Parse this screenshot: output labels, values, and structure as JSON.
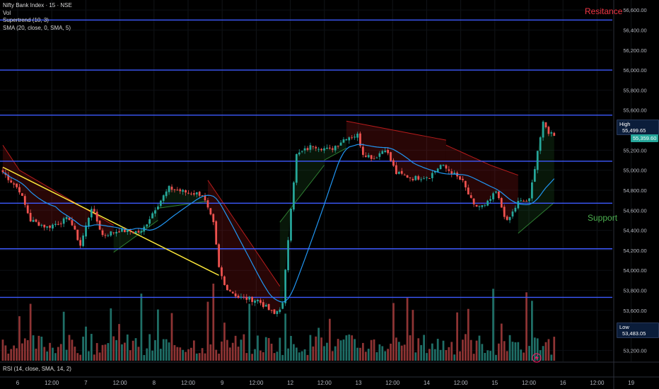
{
  "legend": {
    "symbol": "Nifty Bank Index · 15 · NSE",
    "vol": "Vol",
    "supertrend": "Supertrend (10, 3)",
    "sma": "SMA (20, close, 0, SMA, 5)"
  },
  "rsi_label": "RSI (14, close, SMA, 14, 2)",
  "zones": {
    "resistance": "Resitance",
    "support": "Support"
  },
  "tags": {
    "high_label": "High",
    "high_value": "55,499.65",
    "current_value": "55,359.60",
    "low_label": "Low",
    "low_value": "53,483.05"
  },
  "colors": {
    "background": "#000000",
    "bull": "#26a69a",
    "bear": "#ef5350",
    "level_line": "#3d5afe",
    "trendline": "#ffeb3b",
    "sma": "#2196f3",
    "resistance_text": "#f23645",
    "support_text": "#4caf50"
  },
  "chart_data": {
    "type": "candlestick",
    "title": "Nifty Bank Index · 15 · NSE",
    "y_ticks": [
      "56,600.00",
      "56,400.00",
      "56,200.00",
      "56,000.00",
      "55,800.00",
      "55,600.00",
      "55,400.00",
      "55,200.00",
      "55,000.00",
      "54,800.00",
      "54,600.00",
      "54,400.00",
      "54,200.00",
      "54,000.00",
      "53,800.00",
      "53,600.00",
      "53,400.00",
      "53,200.00"
    ],
    "ylim": [
      53090,
      56700
    ],
    "x_ticks": [
      "6",
      "12:00",
      "7",
      "12:00",
      "8",
      "12:00",
      "9",
      "12:00",
      "12",
      "12:00",
      "13",
      "12:00",
      "14",
      "12:00",
      "15",
      "12:00",
      "16",
      "12:00",
      "19"
    ],
    "horizontal_levels": [
      56500,
      56000,
      55550,
      55090,
      54670,
      54215,
      53730
    ],
    "trendline": {
      "from": {
        "bar": 0,
        "price": 55030
      },
      "to": {
        "bar": 78,
        "price": 53950
      }
    },
    "close_anchors": [
      [
        0,
        54980
      ],
      [
        6,
        54800
      ],
      [
        10,
        54500
      ],
      [
        16,
        54430
      ],
      [
        24,
        54520
      ],
      [
        28,
        54250
      ],
      [
        32,
        54630
      ],
      [
        36,
        54350
      ],
      [
        42,
        54400
      ],
      [
        50,
        54380
      ],
      [
        55,
        54620
      ],
      [
        60,
        54820
      ],
      [
        66,
        54780
      ],
      [
        72,
        54760
      ],
      [
        76,
        54460
      ],
      [
        78,
        54020
      ],
      [
        80,
        53850
      ],
      [
        85,
        53730
      ],
      [
        92,
        53700
      ],
      [
        98,
        53560
      ],
      [
        101,
        53660
      ],
      [
        104,
        54640
      ],
      [
        106,
        55150
      ],
      [
        112,
        55250
      ],
      [
        118,
        55200
      ],
      [
        124,
        55330
      ],
      [
        128,
        55350
      ],
      [
        130,
        55170
      ],
      [
        134,
        55120
      ],
      [
        138,
        55220
      ],
      [
        142,
        54970
      ],
      [
        148,
        54920
      ],
      [
        154,
        54940
      ],
      [
        158,
        55050
      ],
      [
        162,
        54980
      ],
      [
        166,
        54880
      ],
      [
        170,
        54640
      ],
      [
        174,
        54640
      ],
      [
        178,
        54780
      ],
      [
        182,
        54480
      ],
      [
        186,
        54680
      ],
      [
        190,
        54700
      ],
      [
        193,
        55200
      ],
      [
        195,
        55460
      ],
      [
        197,
        55380
      ],
      [
        199,
        55360
      ]
    ],
    "supertrend_segments": [
      {
        "from": 0,
        "to": 6,
        "trend": "down",
        "start": 55250,
        "end": 55000
      },
      {
        "from": 6,
        "to": 40,
        "trend": "down",
        "start": 55000,
        "end": 54450
      },
      {
        "from": 40,
        "to": 56,
        "trend": "up",
        "start": 54180,
        "end": 54500
      },
      {
        "from": 56,
        "to": 74,
        "trend": "up",
        "start": 54620,
        "end": 54690
      },
      {
        "from": 74,
        "to": 100,
        "trend": "down",
        "start": 54900,
        "end": 53840
      },
      {
        "from": 100,
        "to": 116,
        "trend": "up",
        "start": 54480,
        "end": 55050
      },
      {
        "from": 116,
        "to": 124,
        "trend": "up",
        "start": 55100,
        "end": 55220
      },
      {
        "from": 124,
        "to": 160,
        "trend": "down",
        "start": 55490,
        "end": 55300
      },
      {
        "from": 160,
        "to": 176,
        "trend": "down",
        "start": 55250,
        "end": 55050
      },
      {
        "from": 176,
        "to": 186,
        "trend": "down",
        "start": 55050,
        "end": 54950
      },
      {
        "from": 186,
        "to": 200,
        "trend": "up",
        "start": 54370,
        "end": 54700
      }
    ],
    "volume_bars": 200
  }
}
